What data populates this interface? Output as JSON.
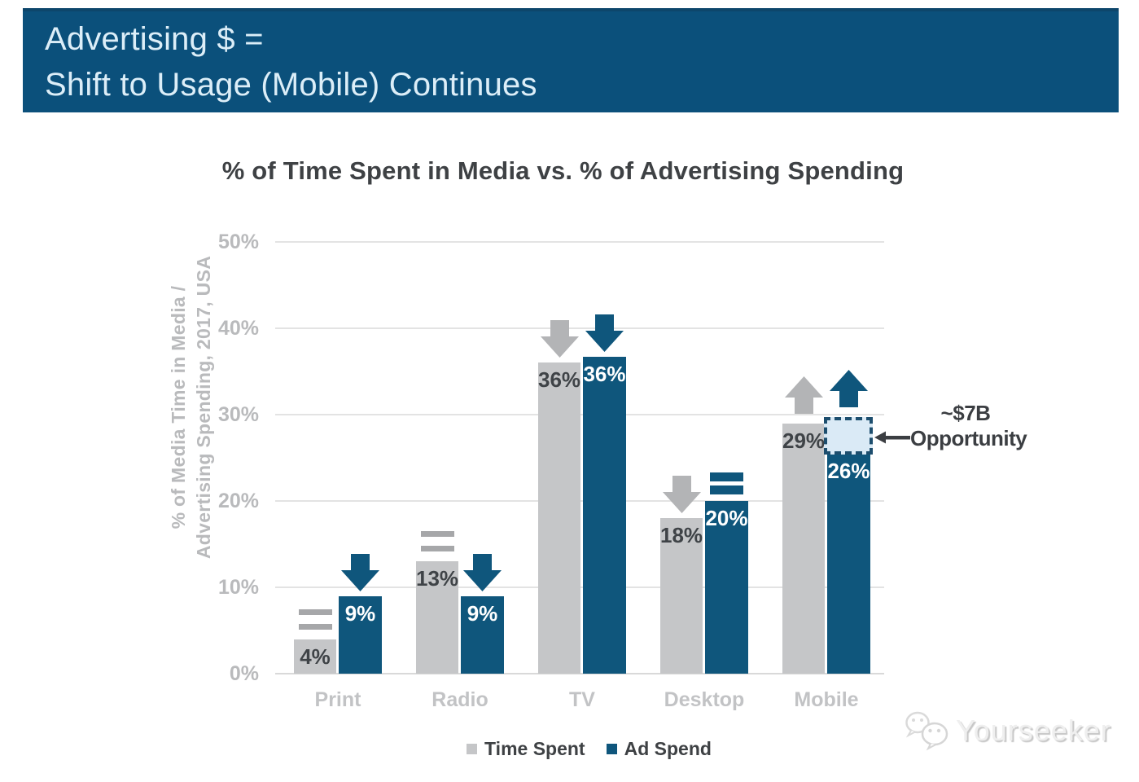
{
  "banner": {
    "title_line1": "Advertising $ =",
    "title_line2": "Shift to Usage (Mobile) Continues",
    "bg_color": "#0b507b"
  },
  "chart_data": {
    "type": "bar",
    "title": "% of Time Spent in Media vs. % of Advertising Spending",
    "categories": [
      "Print",
      "Radio",
      "TV",
      "Desktop",
      "Mobile"
    ],
    "series": [
      {
        "name": "Time Spent",
        "color": "#c5c6c8",
        "label_color": "#3f4347",
        "arrow_color": "#b3b4b6",
        "equals_color": "#a6a7a9",
        "values": [
          4,
          13,
          36,
          18,
          29
        ],
        "value_labels": [
          "4%",
          "13%",
          "36%",
          "18%",
          "29%"
        ],
        "trend": [
          "flat",
          "flat",
          "down",
          "down",
          "up"
        ]
      },
      {
        "name": "Ad Spend",
        "color": "#0f567c",
        "label_color": "#ffffff",
        "arrow_color": "#0f567c",
        "equals_color": "#0f567c",
        "values": [
          9,
          9,
          36,
          20,
          26
        ],
        "value_labels": [
          "9%",
          "9%",
          "36%",
          "20%",
          "26%"
        ],
        "trend": [
          "down",
          "down",
          "down",
          "flat",
          "up"
        ]
      }
    ],
    "ylabel_lines": [
      "% of Media Time in Media /",
      "Advertising Spending, 2017, USA"
    ],
    "ylim": [
      0,
      50
    ],
    "yticks_pct": [
      0,
      10,
      20,
      30,
      40,
      50
    ],
    "ytick_suffix": "%",
    "grid": true,
    "legend_position": "bottom",
    "annotation": {
      "line1": "~$7B",
      "line2": "Opportunity",
      "target": "gap between Mobile time spent (29%) and Mobile ad spend (26%)",
      "gap_fill": "#daeaf6",
      "gap_border": "#1d4e6e"
    }
  },
  "watermark": {
    "text": "Yourseeker",
    "icon": "wechat-logo"
  }
}
